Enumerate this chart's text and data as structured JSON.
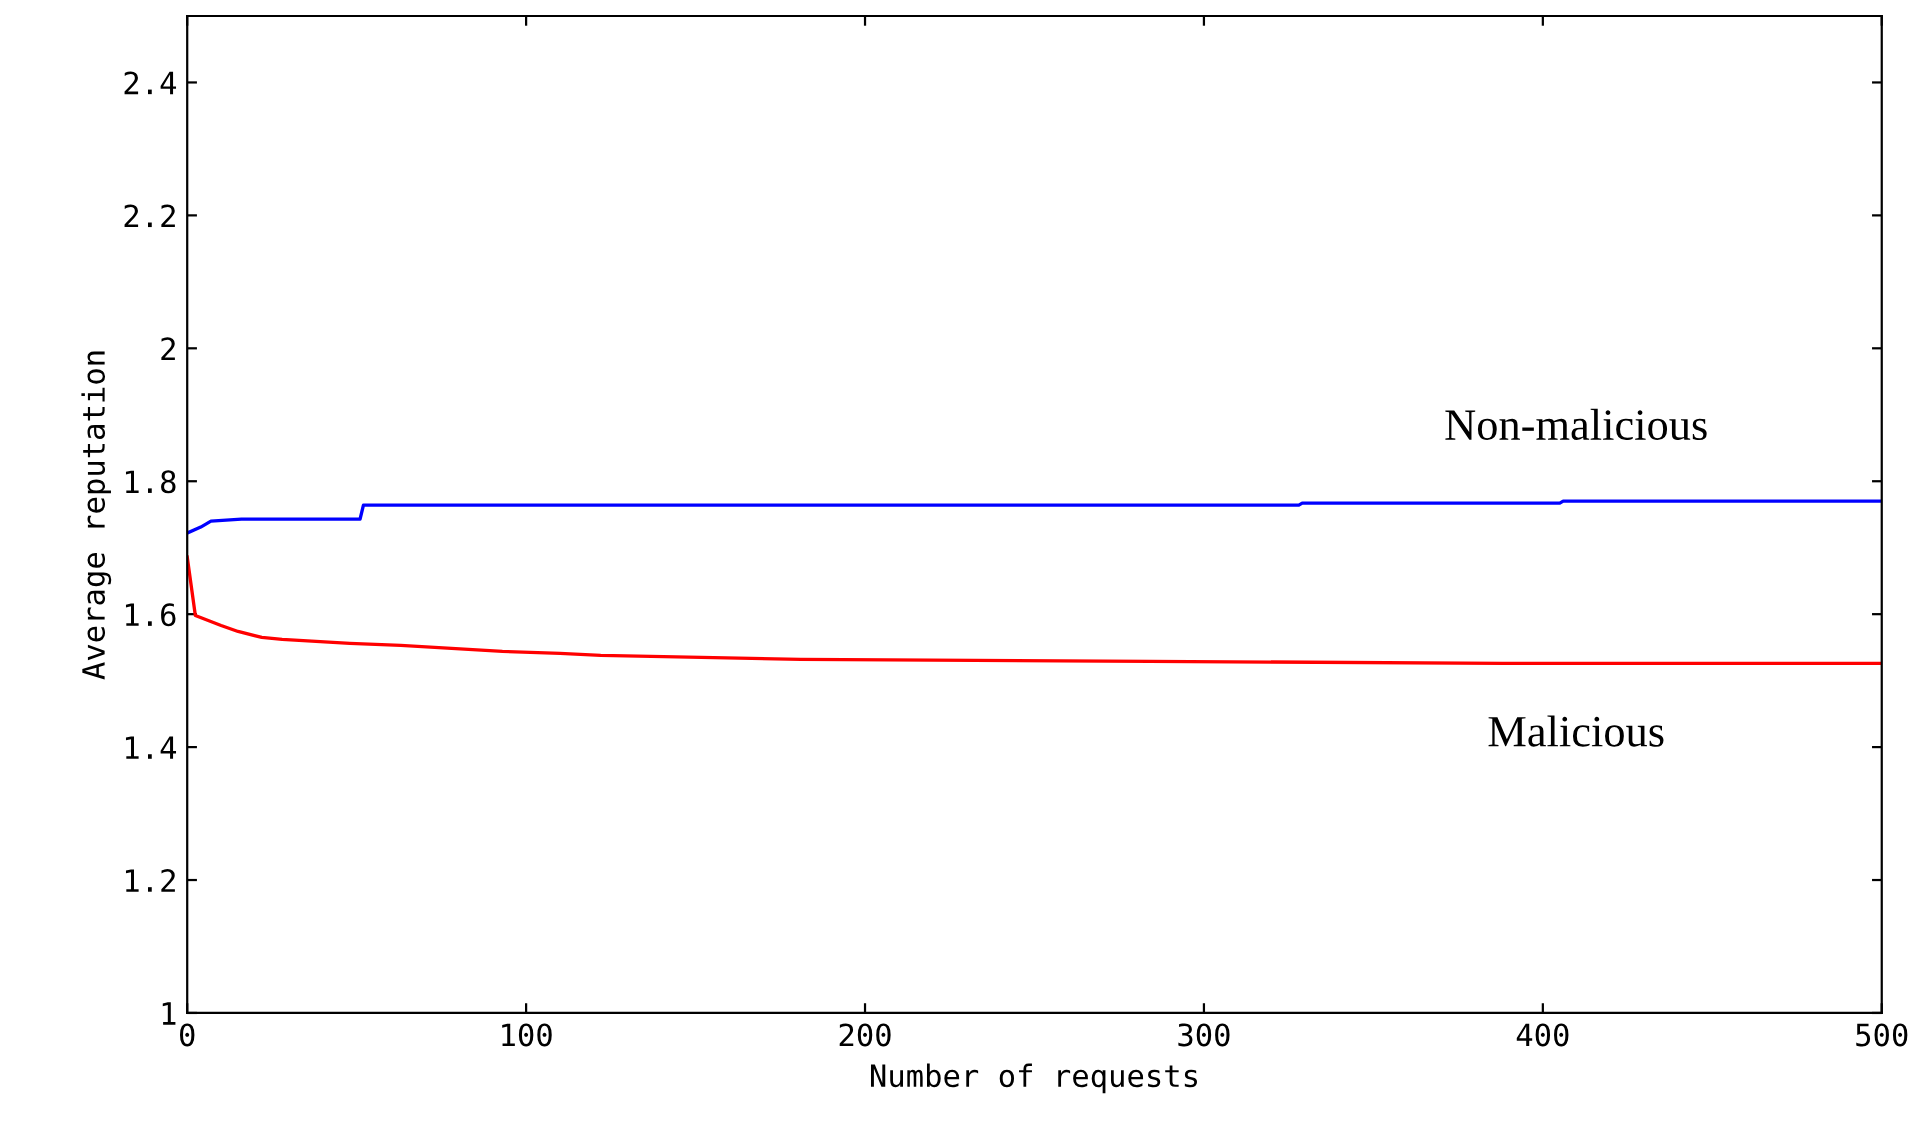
{
  "chart_data": {
    "type": "line",
    "xlabel": "Number of requests",
    "ylabel": "Average reputation",
    "xlim": [
      0,
      500
    ],
    "ylim": [
      1,
      2.5
    ],
    "xticks": [
      0,
      100,
      200,
      300,
      400,
      500
    ],
    "yticks": [
      1,
      1.2,
      1.4,
      1.6,
      1.8,
      2,
      2.2,
      2.4
    ],
    "grid": false,
    "legend": false,
    "line_style": "solid",
    "marker": "none",
    "series": [
      {
        "name": "Non-malicious",
        "color": "#0000ff",
        "x": [
          0,
          4,
          7,
          16,
          51,
          52,
          328,
          329,
          405,
          406,
          500
        ],
        "values": [
          1.722,
          1.731,
          1.74,
          1.743,
          1.743,
          1.764,
          1.764,
          1.767,
          1.767,
          1.77,
          1.77
        ]
      },
      {
        "name": "Malicious",
        "color": "#ff0000",
        "x": [
          0,
          2.4,
          10,
          15,
          22,
          28,
          48,
          63,
          93,
          110,
          122,
          181,
          284,
          388,
          500
        ],
        "values": [
          1.686,
          1.598,
          1.583,
          1.574,
          1.565,
          1.562,
          1.556,
          1.553,
          1.544,
          1.541,
          1.538,
          1.532,
          1.529,
          1.526,
          1.526
        ]
      }
    ]
  }
}
